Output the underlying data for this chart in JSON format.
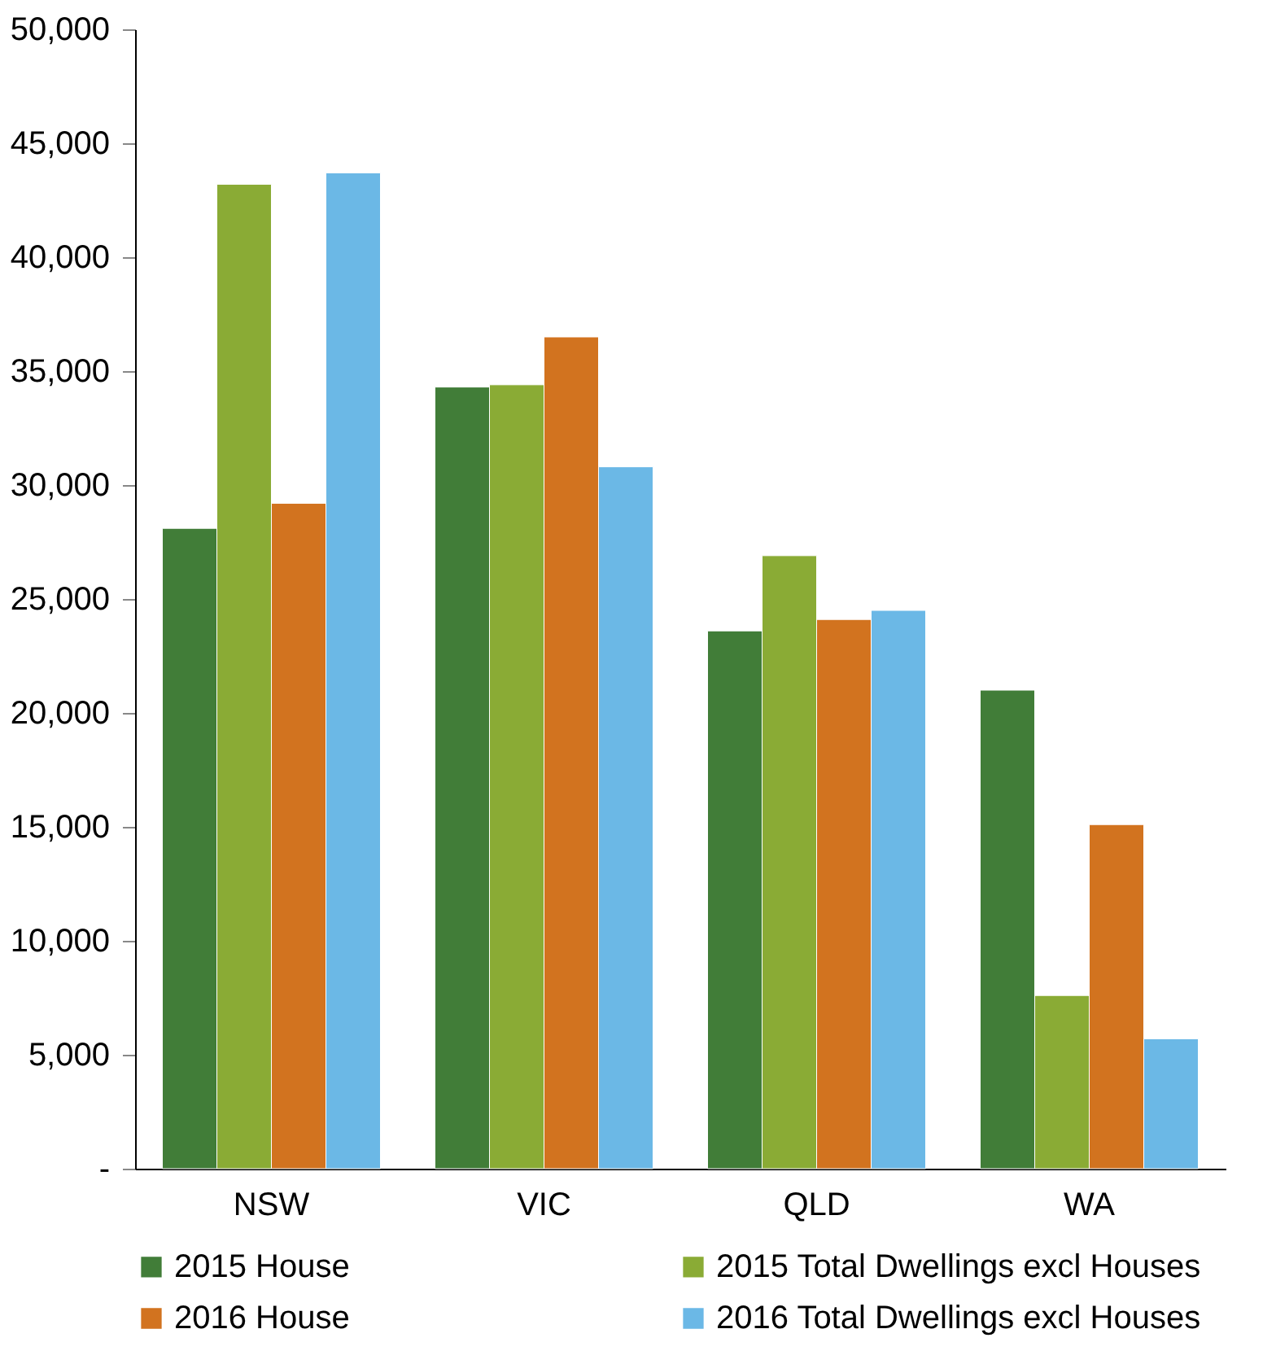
{
  "chart_data": {
    "type": "bar",
    "categories": [
      "NSW",
      "VIC",
      "QLD",
      "WA"
    ],
    "series": [
      {
        "name": "2015 House",
        "color": "#417d38",
        "values": [
          28100,
          34300,
          23600,
          21000
        ]
      },
      {
        "name": "2015 Total Dwellings excl Houses",
        "color": "#8aab35",
        "values": [
          43200,
          34400,
          26900,
          7600
        ]
      },
      {
        "name": "2016 House",
        "color": "#d2731f",
        "values": [
          29200,
          36500,
          24100,
          15100
        ]
      },
      {
        "name": "2016 Total Dwellings excl Houses",
        "color": "#6bb8e6",
        "values": [
          43700,
          30800,
          24500,
          5700
        ]
      }
    ],
    "ylim": [
      0,
      50000
    ],
    "yticks": [
      {
        "value": 0,
        "label": "-"
      },
      {
        "value": 5000,
        "label": "5,000"
      },
      {
        "value": 10000,
        "label": "10,000"
      },
      {
        "value": 15000,
        "label": "15,000"
      },
      {
        "value": 20000,
        "label": "20,000"
      },
      {
        "value": 25000,
        "label": "25,000"
      },
      {
        "value": 30000,
        "label": "30,000"
      },
      {
        "value": 35000,
        "label": "35,000"
      },
      {
        "value": 40000,
        "label": "40,000"
      },
      {
        "value": 45000,
        "label": "45,000"
      },
      {
        "value": 50000,
        "label": "50,000"
      }
    ],
    "grid": false,
    "legend": "bottom"
  }
}
